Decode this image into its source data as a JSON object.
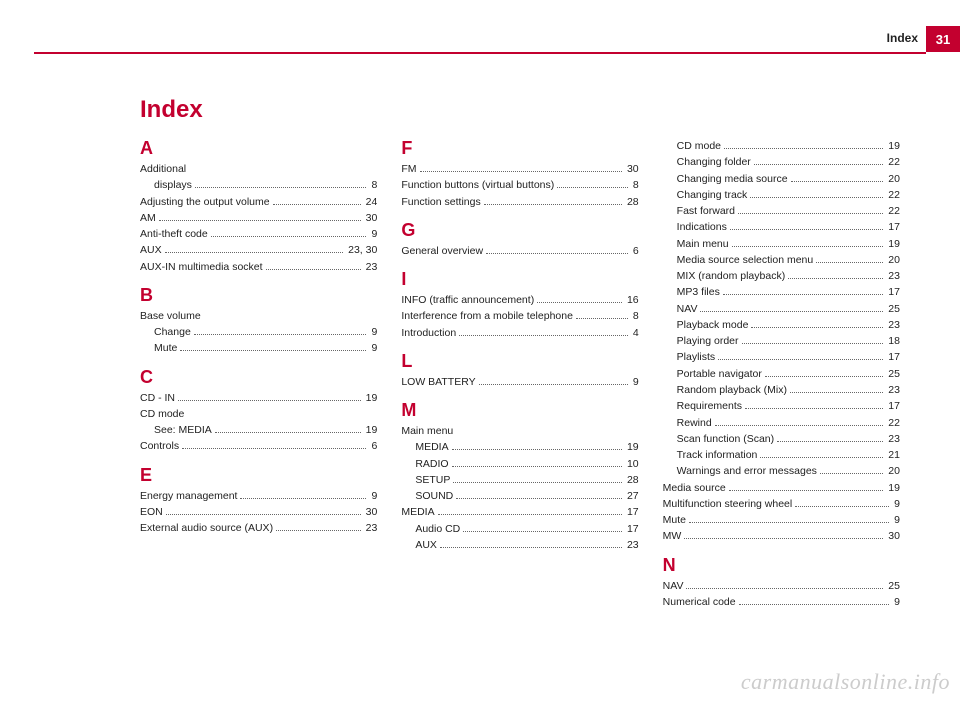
{
  "header": {
    "label": "Index",
    "page_number": "31"
  },
  "title": "Index",
  "columns": [
    {
      "sections": [
        {
          "letter": "A",
          "entries": [
            {
              "label": "Additional",
              "header_only": true
            },
            {
              "label": "displays",
              "page": "8",
              "sub": true
            },
            {
              "label": "Adjusting the output volume",
              "page": "24"
            },
            {
              "label": "AM",
              "page": "30"
            },
            {
              "label": "Anti-theft code",
              "page": "9"
            },
            {
              "label": "AUX",
              "page": "23, 30"
            },
            {
              "label": "AUX-IN multimedia socket",
              "page": "23"
            }
          ]
        },
        {
          "letter": "B",
          "entries": [
            {
              "label": "Base volume",
              "header_only": true
            },
            {
              "label": "Change",
              "page": "9",
              "sub": true
            },
            {
              "label": "Mute",
              "page": "9",
              "sub": true
            }
          ]
        },
        {
          "letter": "C",
          "entries": [
            {
              "label": "CD - IN",
              "page": "19"
            },
            {
              "label": "CD mode",
              "header_only": true
            },
            {
              "label": "See: MEDIA",
              "page": "19",
              "sub": true
            },
            {
              "label": "Controls",
              "page": "6"
            }
          ]
        },
        {
          "letter": "E",
          "entries": [
            {
              "label": "Energy management",
              "page": "9"
            },
            {
              "label": "EON",
              "page": "30"
            },
            {
              "label": "External audio source (AUX)",
              "page": "23"
            }
          ]
        }
      ]
    },
    {
      "sections": [
        {
          "letter": "F",
          "entries": [
            {
              "label": "FM",
              "page": "30"
            },
            {
              "label": "Function buttons (virtual buttons)",
              "page": "8"
            },
            {
              "label": "Function settings",
              "page": "28"
            }
          ]
        },
        {
          "letter": "G",
          "entries": [
            {
              "label": "General overview",
              "page": "6"
            }
          ]
        },
        {
          "letter": "I",
          "entries": [
            {
              "label": "INFO (traffic announcement)",
              "page": "16"
            },
            {
              "label": "Interference from a mobile telephone",
              "page": "8"
            },
            {
              "label": "Introduction",
              "page": "4"
            }
          ]
        },
        {
          "letter": "L",
          "entries": [
            {
              "label": "LOW BATTERY",
              "page": "9"
            }
          ]
        },
        {
          "letter": "M",
          "entries": [
            {
              "label": "Main menu",
              "header_only": true
            },
            {
              "label": "MEDIA",
              "page": "19",
              "sub": true
            },
            {
              "label": "RADIO",
              "page": "10",
              "sub": true
            },
            {
              "label": "SETUP",
              "page": "28",
              "sub": true
            },
            {
              "label": "SOUND",
              "page": "27",
              "sub": true
            },
            {
              "label": "MEDIA",
              "page": "17"
            },
            {
              "label": "Audio CD",
              "page": "17",
              "sub": true
            },
            {
              "label": "AUX",
              "page": "23",
              "sub": true
            }
          ]
        }
      ]
    },
    {
      "sections": [
        {
          "letter": "",
          "entries": [
            {
              "label": "CD mode",
              "page": "19",
              "sub": true
            },
            {
              "label": "Changing folder",
              "page": "22",
              "sub": true
            },
            {
              "label": "Changing media source",
              "page": "20",
              "sub": true
            },
            {
              "label": "Changing track",
              "page": "22",
              "sub": true
            },
            {
              "label": "Fast forward",
              "page": "22",
              "sub": true
            },
            {
              "label": "Indications",
              "page": "17",
              "sub": true
            },
            {
              "label": "Main menu",
              "page": "19",
              "sub": true
            },
            {
              "label": "Media source selection menu",
              "page": "20",
              "sub": true
            },
            {
              "label": "MIX (random playback)",
              "page": "23",
              "sub": true
            },
            {
              "label": "MP3 files",
              "page": "17",
              "sub": true
            },
            {
              "label": "NAV",
              "page": "25",
              "sub": true
            },
            {
              "label": "Playback mode",
              "page": "23",
              "sub": true
            },
            {
              "label": "Playing order",
              "page": "18",
              "sub": true
            },
            {
              "label": "Playlists",
              "page": "17",
              "sub": true
            },
            {
              "label": "Portable navigator",
              "page": "25",
              "sub": true
            },
            {
              "label": "Random playback (Mix)",
              "page": "23",
              "sub": true
            },
            {
              "label": "Requirements",
              "page": "17",
              "sub": true
            },
            {
              "label": "Rewind",
              "page": "22",
              "sub": true
            },
            {
              "label": "Scan function (Scan)",
              "page": "23",
              "sub": true
            },
            {
              "label": "Track information",
              "page": "21",
              "sub": true
            },
            {
              "label": "Warnings and error messages",
              "page": "20",
              "sub": true
            },
            {
              "label": "Media source",
              "page": "19"
            },
            {
              "label": "Multifunction steering wheel",
              "page": "9"
            },
            {
              "label": "Mute",
              "page": "9"
            },
            {
              "label": "MW",
              "page": "30"
            }
          ]
        },
        {
          "letter": "N",
          "entries": [
            {
              "label": "NAV",
              "page": "25"
            },
            {
              "label": "Numerical code",
              "page": "9"
            }
          ]
        }
      ]
    }
  ],
  "watermark": "carmanualsonline.info"
}
